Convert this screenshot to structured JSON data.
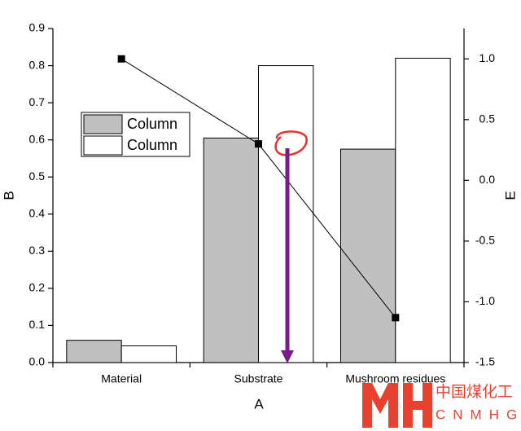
{
  "chart_data": {
    "type": "bar",
    "x_label": "A",
    "y_label": "B",
    "y2_label": "E",
    "categories": [
      "Material",
      "Substrate",
      "Mushroom residues"
    ],
    "series": [
      {
        "name": "Column",
        "color": "#c0c0c0",
        "values": [
          0.06,
          0.605,
          0.575
        ]
      },
      {
        "name": "Column",
        "color": "#ffffff",
        "values": [
          0.045,
          0.8,
          0.82
        ]
      },
      {
        "type": "line",
        "axis": "y2",
        "color": "#000000",
        "values": [
          1.0,
          0.3,
          -1.13
        ]
      }
    ],
    "ylim": [
      0,
      0.9
    ],
    "yticks": [
      {
        "value": 0,
        "label": "0.0"
      },
      0.1,
      0.2,
      0.3,
      0.4,
      0.5,
      0.6,
      0.7,
      0.8,
      0.9
    ],
    "y2lim": [
      -1.5,
      1.25
    ],
    "y2ticks": [
      -1.5,
      {
        "value": -1,
        "label": "-1.0"
      },
      -0.5,
      {
        "value": 0,
        "label": "0.0"
      },
      0.5,
      {
        "value": 1,
        "label": "1.0"
      }
    ],
    "grid": false
  },
  "watermark": {
    "title": "中国煤化工",
    "subtitle": "CNMHG"
  }
}
